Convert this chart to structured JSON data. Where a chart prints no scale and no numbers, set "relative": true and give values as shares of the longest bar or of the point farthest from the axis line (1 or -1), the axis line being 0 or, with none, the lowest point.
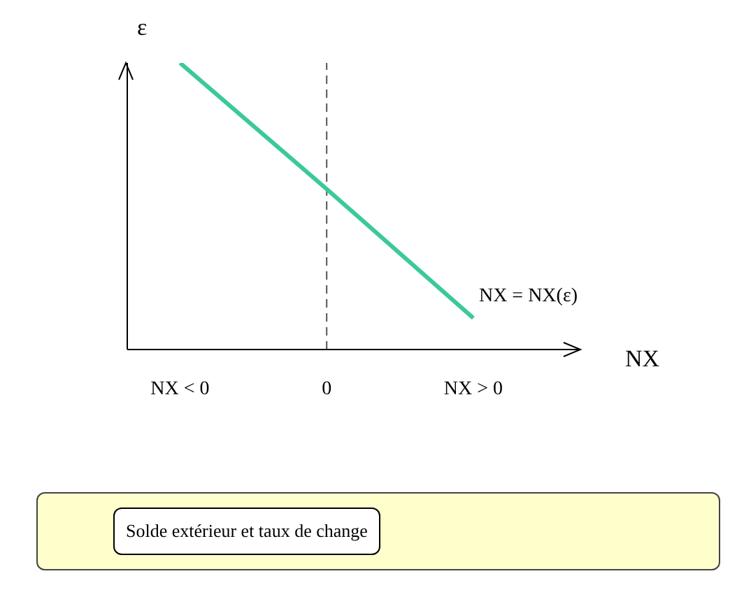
{
  "chart_data": {
    "type": "line",
    "relative": true,
    "xlabel": "NX",
    "ylabel": "ε",
    "categories": [
      "NX < 0",
      "0",
      "NX > 0"
    ],
    "series": [
      {
        "name": "NX = NX(ε)",
        "color": "#3cc99a",
        "values": [
          1,
          0.56,
          0.11
        ]
      }
    ],
    "ref_lines": [
      {
        "axis": "x",
        "value": "0",
        "color": "#555555",
        "line_style": "dashed"
      }
    ],
    "marker": "none",
    "line_style": "solid",
    "annotations": [
      "Solde extérieur et taux de change"
    ]
  }
}
